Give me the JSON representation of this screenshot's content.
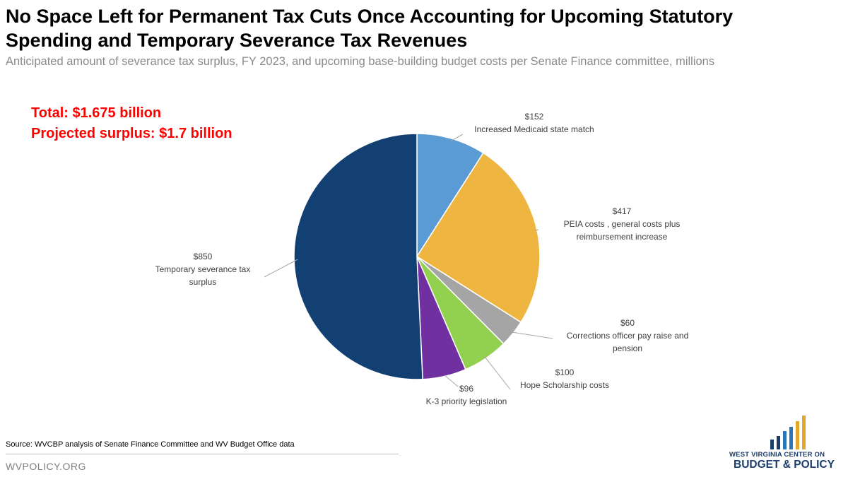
{
  "header": {
    "title_line1": "No Space Left for Permanent Tax Cuts Once Accounting for Upcoming Statutory",
    "title_line2": "Spending and Temporary Severance Tax Revenues",
    "subtitle": "Anticipated amount of severance tax surplus, FY 2023, and upcoming base-building budget costs per Senate Finance committee, millions"
  },
  "annotations": {
    "total": "Total: $1.675 billion",
    "surplus": "Projected surplus: $1.7 billion"
  },
  "chart_data": {
    "type": "pie",
    "title": "",
    "start_angle_deg": 0,
    "direction": "clockwise",
    "slices": [
      {
        "label": [
          "Increased Medicaid state match"
        ],
        "value": 152,
        "value_label": "$152",
        "color": "#5b9bd5"
      },
      {
        "label": [
          "PEIA costs , general costs plus",
          "reimbursement increase"
        ],
        "value": 417,
        "value_label": "$417",
        "color": "#eeb541"
      },
      {
        "label": [
          "Corrections officer pay raise and",
          "pension"
        ],
        "value": 60,
        "value_label": "$60",
        "color": "#a5a5a5"
      },
      {
        "label": [
          "Hope Scholarship costs"
        ],
        "value": 100,
        "value_label": "$100",
        "color": "#92d050"
      },
      {
        "label": [
          "K-3 priority legislation"
        ],
        "value": 96,
        "value_label": "$96",
        "color": "#7030a0"
      },
      {
        "label": [
          "Temporary severance tax",
          "surplus"
        ],
        "value": 850,
        "value_label": "$850",
        "color": "#124072"
      }
    ],
    "legend": "none"
  },
  "footer": {
    "source": "Source: WVCBP analysis of Senate Finance Committee and WV Budget Office data",
    "site": "WVPOLICY.ORG",
    "logo_top": "WEST VIRGINIA CENTER ON",
    "logo_bottom": "BUDGET & POLICY",
    "logo_colors": {
      "navy": "#1c3d6b",
      "blue": "#2e75b6",
      "gold": "#e3a82b"
    }
  }
}
